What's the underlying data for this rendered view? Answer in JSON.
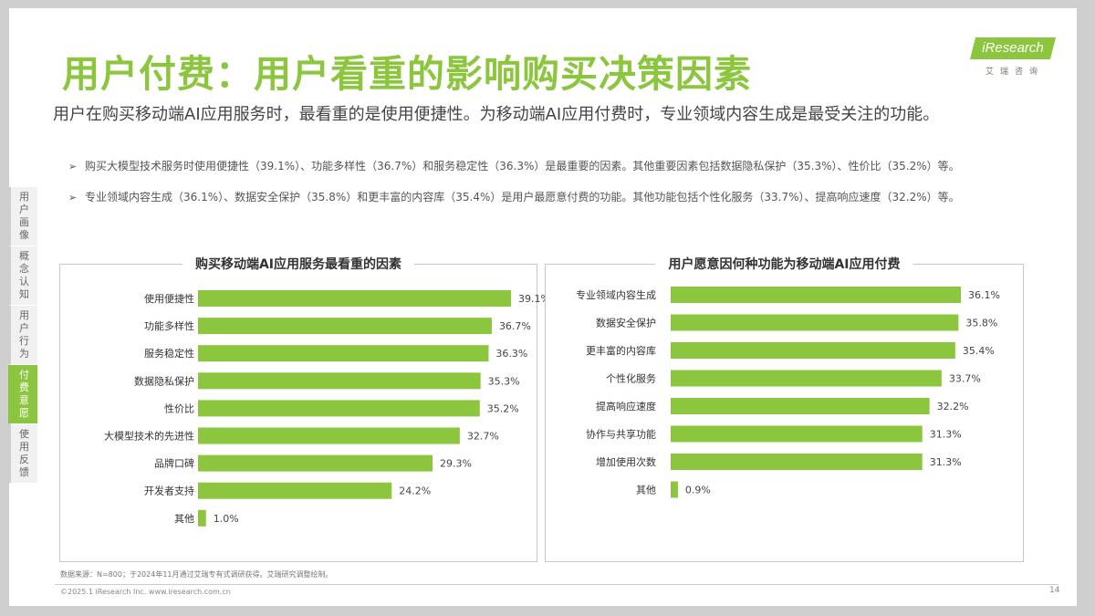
{
  "title": "用户付费：用户看重的影响购买决策因素",
  "logo": {
    "brand": "iResearch",
    "sub": "艾瑞咨询"
  },
  "summary": "用户在购买移动端AI应用服务时，最看重的是使用便捷性。为移动端AI应用付费时，专业领域内容生成是最受关注的功能。",
  "bullets": [
    "购买大模型技术服务时使用便捷性（39.1%）、功能多样性（36.7%）和服务稳定性（36.3%）是最重要的因素。其他重要因素包括数据隐私保护（35.3%）、性价比（35.2%）等。",
    "专业领域内容生成（36.1%）、数据安全保护（35.8%）和更丰富的内容库（35.4%）是用户最愿意付费的功能。其他功能包括个性化服务（33.7%）、提高响应速度（32.2%）等。"
  ],
  "bullet_marker": "➢",
  "sidenav": [
    {
      "label": "用户画像",
      "active": false
    },
    {
      "label": "概念认知",
      "active": false
    },
    {
      "label": "用户行为",
      "active": false
    },
    {
      "label": "付费意愿",
      "active": true
    },
    {
      "label": "使用反馈",
      "active": false
    }
  ],
  "colors": {
    "accent": "#8cc63f",
    "bar": "#8cc63f",
    "text": "#333333"
  },
  "chart_data": [
    {
      "type": "bar",
      "orientation": "horizontal",
      "title": "购买移动端AI应用服务最看重的因素",
      "categories": [
        "使用便捷性",
        "功能多样性",
        "服务稳定性",
        "数据隐私保护",
        "性价比",
        "大模型技术的先进性",
        "品牌口碑",
        "开发者支持",
        "其他"
      ],
      "values": [
        39.1,
        36.7,
        36.3,
        35.3,
        35.2,
        32.7,
        29.3,
        24.2,
        1.0
      ],
      "value_labels": [
        "39.1%",
        "36.7%",
        "36.3%",
        "35.3%",
        "35.2%",
        "32.7%",
        "29.3%",
        "24.2%",
        "1.0%"
      ],
      "unit": "%",
      "xlim": [
        0,
        40
      ],
      "grid": false,
      "legend": "none"
    },
    {
      "type": "bar",
      "orientation": "horizontal",
      "title": "用户愿意因何种功能为移动端AI应用付费",
      "categories": [
        "专业领域内容生成",
        "数据安全保护",
        "更丰富的内容库",
        "个性化服务",
        "提高响应速度",
        "协作与共享功能",
        "增加使用次数",
        "其他"
      ],
      "values": [
        36.1,
        35.8,
        35.4,
        33.7,
        32.2,
        31.3,
        31.3,
        0.9
      ],
      "value_labels": [
        "36.1%",
        "35.8%",
        "35.4%",
        "33.7%",
        "32.2%",
        "31.3%",
        "31.3%",
        "0.9%"
      ],
      "unit": "%",
      "xlim": [
        0,
        40
      ],
      "grid": false,
      "legend": "none"
    }
  ],
  "footnote": "数据来源：N=800；于2024年11月通过艾瑞专有式调研获得。艾瑞研究调整绘制。",
  "copyright": "©2025.1 iResearch Inc.                    www.iresearch.com.cn",
  "page_number": "14"
}
